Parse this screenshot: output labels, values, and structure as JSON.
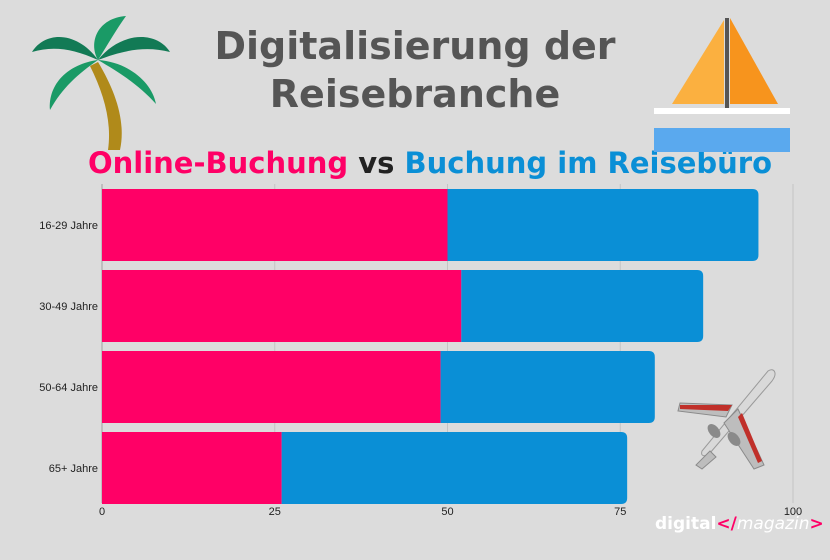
{
  "header": {
    "title_line1": "Digitalisierung der",
    "title_line2": "Reisebranche",
    "subtitle_online": "Online-Buchung",
    "subtitle_vs": "vs",
    "subtitle_agency": "Buchung im Reisebüro"
  },
  "brand": {
    "part1": "digital",
    "mark_open": "</",
    "part2": "magazin",
    "mark_close": ">"
  },
  "colors": {
    "online": "#ff0066",
    "agency": "#0a8fd6",
    "background": "#dcdcdc"
  },
  "icons": [
    "palm-tree-icon",
    "sailboat-icon",
    "airplane-icon"
  ],
  "chart_data": {
    "type": "bar",
    "orientation": "horizontal",
    "stacked": true,
    "categories": [
      "16-29 Jahre",
      "30-49 Jahre",
      "50-64 Jahre",
      "65+ Jahre"
    ],
    "series": [
      {
        "name": "Online-Buchung",
        "values": [
          50,
          52,
          49,
          26
        ]
      },
      {
        "name": "Buchung im Reisebüro",
        "values": [
          45,
          35,
          31,
          50
        ]
      }
    ],
    "xlim": [
      0,
      100
    ],
    "xticks": [
      0,
      25,
      50,
      75,
      100
    ],
    "grid": true
  }
}
